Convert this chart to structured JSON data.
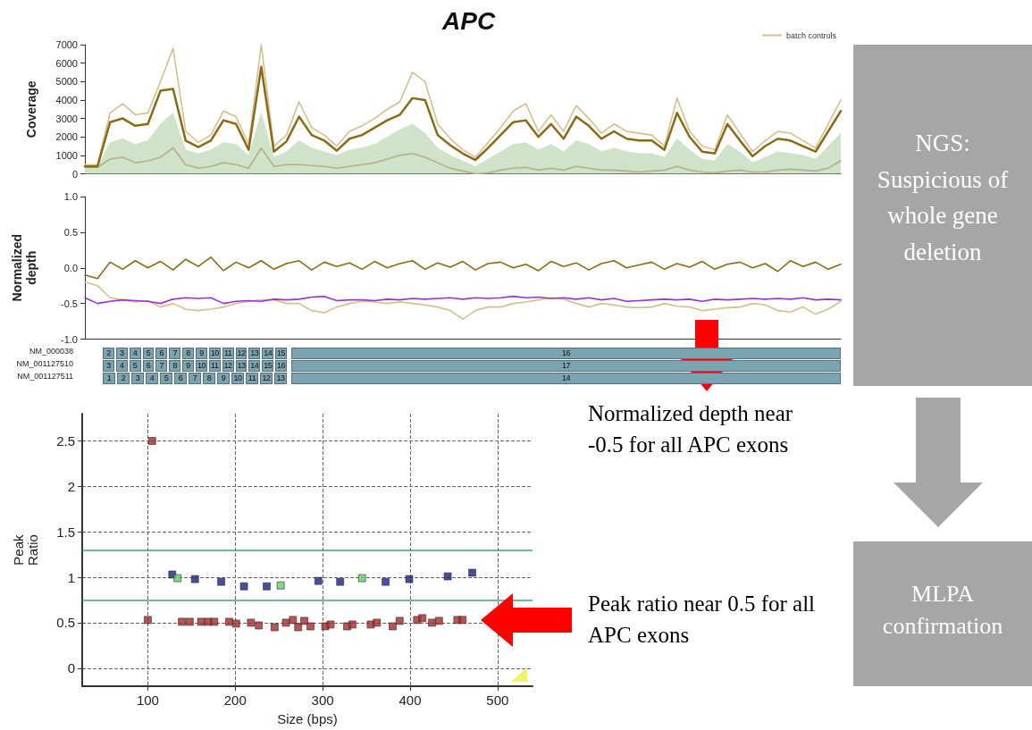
{
  "chart_data": [
    {
      "type": "line",
      "title": "APC",
      "ylabel": "Coverage",
      "categories": [
        null,
        null,
        null,
        null,
        null,
        null,
        null,
        null,
        null,
        null,
        null,
        null,
        null,
        null,
        null,
        null,
        null,
        null,
        null,
        null,
        null,
        null,
        null,
        null,
        null,
        null,
        null,
        null,
        null,
        null,
        null,
        null,
        null,
        null,
        null,
        null,
        null,
        null,
        null,
        null,
        null,
        null,
        null,
        null,
        null,
        null,
        null,
        null,
        null,
        null,
        null,
        null,
        null,
        null,
        null,
        null,
        null,
        null,
        null,
        null,
        null
      ],
      "ylim": [
        0,
        7000
      ],
      "yticks": [
        0,
        1000,
        2000,
        3000,
        4000,
        5000,
        6000,
        7000
      ],
      "tick_labels": "y",
      "grid": false,
      "legend": "top right",
      "marker": "none",
      "line_style": "solid",
      "annotations": [
        "NGS: Suspicious of whole gene deletion"
      ],
      "series": [
        {
          "type": "area",
          "color": "#cfe3c9",
          "values": [
            350,
            350,
            1700,
            1900,
            1600,
            1800,
            2700,
            3300,
            1300,
            1100,
            1300,
            1700,
            1600,
            1000,
            3300,
            900,
            1200,
            1800,
            1400,
            1200,
            1000,
            1300,
            1400,
            1600,
            2000,
            2400,
            2700,
            2200,
            1400,
            1000,
            700,
            400,
            800,
            1200,
            1600,
            1700,
            1300,
            1600,
            1200,
            1800,
            1600,
            1200,
            1400,
            1200,
            1100,
            1100,
            900,
            1900,
            1300,
            800,
            700,
            1600,
            1200,
            600,
            900,
            1200,
            1100,
            1000,
            800,
            1500,
            2200
          ]
        },
        {
          "color": "#b3b08a",
          "values": [
            350,
            350,
            800,
            900,
            600,
            700,
            900,
            1400,
            500,
            300,
            400,
            600,
            500,
            300,
            1400,
            400,
            500,
            500,
            450,
            400,
            300,
            400,
            500,
            600,
            800,
            1000,
            1100,
            900,
            600,
            300,
            150,
            0,
            50,
            200,
            300,
            350,
            200,
            300,
            200,
            400,
            300,
            200,
            200,
            150,
            100,
            150,
            200,
            400,
            200,
            100,
            50,
            150,
            200,
            100,
            100,
            200,
            250,
            200,
            150,
            300,
            700
          ]
        },
        {
          "name": "batch controls",
          "color": "#d4c08e",
          "values": [
            500,
            500,
            3300,
            3800,
            3200,
            3300,
            5000,
            6800,
            2300,
            1700,
            2100,
            3400,
            3100,
            1600,
            7000,
            1500,
            2100,
            3900,
            2500,
            2100,
            1500,
            2300,
            2600,
            3000,
            3500,
            3900,
            5500,
            5000,
            2700,
            1900,
            1300,
            900,
            1700,
            2500,
            3400,
            3800,
            2300,
            3200,
            2300,
            3700,
            3000,
            2200,
            2700,
            2300,
            2200,
            2100,
            1500,
            4100,
            2300,
            1500,
            1300,
            3200,
            2200,
            1200,
            1800,
            2300,
            2200,
            1800,
            1400,
            2700,
            4000
          ]
        },
        {
          "color": "#8b6a14",
          "values": [
            400,
            400,
            2800,
            3000,
            2600,
            2700,
            4500,
            4600,
            1800,
            1450,
            1800,
            2900,
            2700,
            1300,
            5800,
            1200,
            1750,
            3100,
            2100,
            1800,
            1250,
            1900,
            2100,
            2500,
            2900,
            3200,
            4100,
            4000,
            2100,
            1550,
            1100,
            750,
            1400,
            2100,
            2800,
            2900,
            2000,
            2700,
            1900,
            3100,
            2600,
            1900,
            2300,
            1900,
            1800,
            1800,
            1300,
            3300,
            2000,
            1200,
            1100,
            2700,
            1800,
            950,
            1500,
            1900,
            1800,
            1500,
            1200,
            2300,
            3400
          ]
        }
      ]
    },
    {
      "type": "line",
      "ylabel": "Normalized depth",
      "categories": [
        null,
        null,
        null,
        null,
        null,
        null,
        null,
        null,
        null,
        null,
        null,
        null,
        null,
        null,
        null,
        null,
        null,
        null,
        null,
        null,
        null,
        null,
        null,
        null,
        null,
        null,
        null,
        null,
        null,
        null,
        null,
        null,
        null,
        null,
        null,
        null,
        null,
        null,
        null,
        null,
        null,
        null,
        null,
        null,
        null,
        null,
        null,
        null,
        null,
        null,
        null,
        null,
        null,
        null,
        null,
        null,
        null,
        null,
        null,
        null,
        null
      ],
      "ylim": [
        -1,
        1
      ],
      "yticks": [
        {
          "value": -1,
          "label": "-1.0"
        },
        {
          "value": -0.5,
          "label": "-0.5"
        },
        {
          "value": 0,
          "label": "0.0"
        },
        {
          "value": 0.5,
          "label": "0.5"
        },
        {
          "value": 1,
          "label": "1.0"
        }
      ],
      "tick_labels": "y",
      "grid": false,
      "marker": "none",
      "line_style": "solid",
      "annotations": [
        "Normalized depth near -0.5 for all APC exons",
        "NM_000038",
        "2 3 4 5 6 7 8 9 10 11 12 13 14 15 16",
        "NM_001127510",
        "3 4 5 6 7 8 9 10 11 12 13 14 15 16 17",
        "NM_001127511",
        "1 2 3 4 5 6 7 8 9 10 11 12 13 14"
      ],
      "series": [
        {
          "color": "#d4c08e",
          "values": [
            -0.2,
            -0.25,
            -0.42,
            -0.45,
            -0.48,
            -0.46,
            -0.55,
            -0.5,
            -0.58,
            -0.6,
            -0.58,
            -0.55,
            -0.5,
            -0.47,
            -0.45,
            -0.45,
            -0.5,
            -0.5,
            -0.6,
            -0.63,
            -0.55,
            -0.5,
            -0.47,
            -0.48,
            -0.5,
            -0.48,
            -0.5,
            -0.52,
            -0.55,
            -0.6,
            -0.72,
            -0.6,
            -0.55,
            -0.55,
            -0.5,
            -0.48,
            -0.45,
            -0.42,
            -0.44,
            -0.5,
            -0.55,
            -0.5,
            -0.52,
            -0.55,
            -0.56,
            -0.55,
            -0.5,
            -0.54,
            -0.55,
            -0.6,
            -0.58,
            -0.56,
            -0.55,
            -0.5,
            -0.52,
            -0.6,
            -0.62,
            -0.55,
            -0.65,
            -0.58,
            -0.47
          ]
        },
        {
          "color": "#8b6a14",
          "values": [
            -0.1,
            -0.15,
            0.08,
            -0.02,
            0.1,
            0.0,
            0.09,
            -0.03,
            0.12,
            0.02,
            0.15,
            -0.04,
            0.08,
            0.0,
            0.1,
            -0.02,
            0.06,
            0.1,
            -0.03,
            0.08,
            0.02,
            0.07,
            -0.02,
            0.09,
            0.0,
            0.06,
            0.1,
            -0.02,
            0.07,
            0.01,
            0.09,
            -0.03,
            0.06,
            0.08,
            0.0,
            0.05,
            -0.04,
            0.09,
            0.02,
            0.07,
            -0.03,
            0.06,
            0.1,
            0.0,
            0.04,
            0.08,
            -0.02,
            0.06,
            0.01,
            0.09,
            -0.02,
            0.05,
            0.08,
            0.0,
            0.06,
            -0.05,
            0.1,
            0.02,
            0.08,
            -0.02,
            0.05
          ]
        },
        {
          "color": "#9933cc",
          "values": [
            -0.42,
            -0.5,
            -0.47,
            -0.45,
            -0.46,
            -0.47,
            -0.5,
            -0.44,
            -0.42,
            -0.43,
            -0.42,
            -0.5,
            -0.47,
            -0.46,
            -0.47,
            -0.44,
            -0.45,
            -0.44,
            -0.41,
            -0.4,
            -0.46,
            -0.45,
            -0.45,
            -0.46,
            -0.44,
            -0.45,
            -0.43,
            -0.44,
            -0.43,
            -0.42,
            -0.44,
            -0.42,
            -0.43,
            -0.42,
            -0.4,
            -0.42,
            -0.41,
            -0.43,
            -0.42,
            -0.44,
            -0.42,
            -0.45,
            -0.43,
            -0.47,
            -0.46,
            -0.45,
            -0.44,
            -0.45,
            -0.44,
            -0.47,
            -0.44,
            -0.45,
            -0.44,
            -0.43,
            -0.44,
            -0.43,
            -0.44,
            -0.42,
            -0.45,
            -0.44,
            -0.45
          ]
        }
      ]
    },
    {
      "type": "scatter",
      "xlabel": "Size (bps)",
      "ylabel": "Peak Ratio",
      "xlim": [
        25,
        540
      ],
      "xticks": [
        100,
        200,
        300,
        400,
        500
      ],
      "ylim": [
        -0.2,
        2.8
      ],
      "yticks": [
        0,
        0.5,
        1,
        1.5,
        2,
        2.5
      ],
      "grid": true,
      "marker": "square",
      "annotations": [
        "Peak ratio near 0.5 for all APC exons",
        "MLPA confirmation"
      ],
      "ref_lines": [
        {
          "axis": "y",
          "value": 1.3,
          "color": "#4a9a8a"
        },
        {
          "axis": "y",
          "value": 0.75,
          "color": "#4a9a8a"
        }
      ],
      "series": [
        {
          "color": "#a52a2a",
          "x": [
            100,
            105,
            139,
            148,
            161,
            169,
            176,
            193,
            201,
            218,
            227,
            245,
            258,
            266,
            272,
            279,
            286,
            303,
            309,
            328,
            334,
            355,
            362,
            380,
            388,
            408,
            414,
            425,
            433,
            454,
            460
          ],
          "values": [
            0.53,
            2.5,
            0.51,
            0.51,
            0.51,
            0.51,
            0.51,
            0.51,
            0.49,
            0.5,
            0.47,
            0.45,
            0.5,
            0.53,
            0.45,
            0.52,
            0.46,
            0.46,
            0.48,
            0.46,
            0.48,
            0.48,
            0.5,
            0.46,
            0.52,
            0.53,
            0.55,
            0.5,
            0.52,
            0.53,
            0.53
          ]
        },
        {
          "color": "#1a237e",
          "x": [
            128,
            154,
            184,
            210,
            236,
            295,
            320,
            372,
            399,
            443,
            471
          ],
          "values": [
            1.03,
            0.98,
            0.95,
            0.9,
            0.9,
            0.96,
            0.95,
            0.95,
            0.98,
            1.01,
            1.05
          ]
        },
        {
          "color": "#66cc66",
          "x": [
            134,
            252,
            345
          ],
          "values": [
            0.99,
            0.91,
            0.99
          ]
        }
      ]
    }
  ]
}
